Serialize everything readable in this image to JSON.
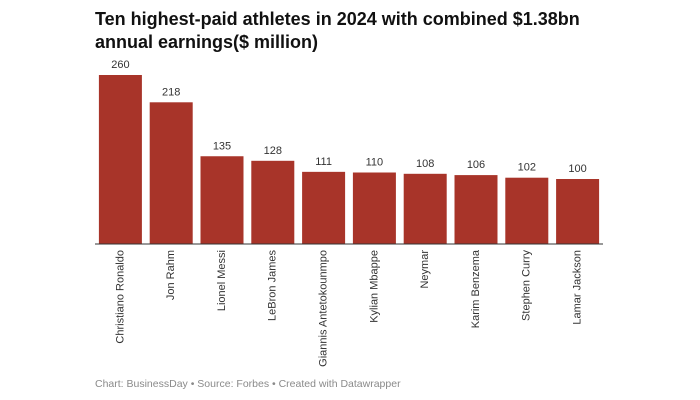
{
  "chart_data": {
    "type": "bar",
    "title": "Ten highest-paid athletes in 2024 with combined $1.38bn annual earnings($ million)",
    "categories": [
      "Christiano Ronaldo",
      "Jon Rahm",
      "Lionel Messi",
      "LeBron James",
      "Giannis Antetokounmpo",
      "Kylian Mbappe",
      "Neymar",
      "Karim Benzema",
      "Stephen Curry",
      "Lamar Jackson"
    ],
    "values": [
      260,
      218,
      135,
      128,
      111,
      110,
      108,
      106,
      102,
      100
    ],
    "color": "#a83429",
    "source": "Chart: BusinessDay • Source: Forbes • Created with Datawrapper"
  }
}
